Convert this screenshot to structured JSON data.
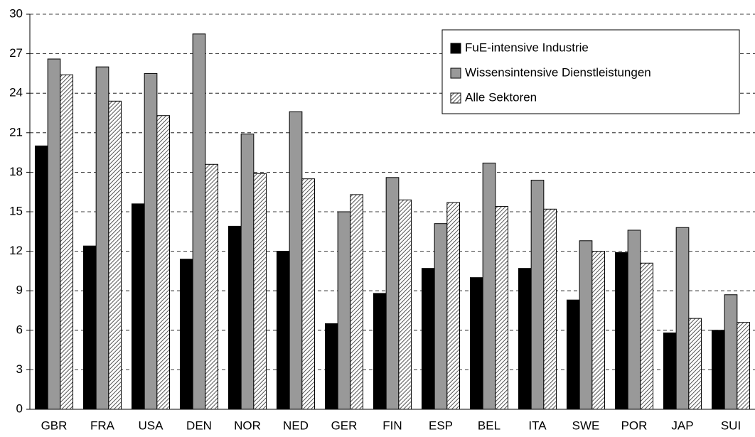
{
  "chart_data": {
    "type": "bar",
    "categories": [
      "GBR",
      "FRA",
      "USA",
      "DEN",
      "NOR",
      "NED",
      "GER",
      "FIN",
      "ESP",
      "BEL",
      "ITA",
      "SWE",
      "POR",
      "JAP",
      "SUI"
    ],
    "series": [
      {
        "name": "FuE-intensive Industrie",
        "color": "#000000",
        "values": [
          20.0,
          12.4,
          15.6,
          11.4,
          13.9,
          12.0,
          6.5,
          8.8,
          10.7,
          10.0,
          10.7,
          8.3,
          11.9,
          5.8,
          6.0
        ]
      },
      {
        "name": "Wissensintensive Dienstleistungen",
        "color": "#999999",
        "values": [
          26.6,
          26.0,
          25.5,
          28.5,
          20.9,
          22.6,
          15.0,
          17.6,
          14.1,
          18.7,
          17.4,
          12.8,
          13.6,
          13.8,
          8.7
        ]
      },
      {
        "name": "Alle Sektoren",
        "color": "#555555",
        "pattern": "hatch",
        "values": [
          25.4,
          23.4,
          22.3,
          18.6,
          17.9,
          17.5,
          16.3,
          15.9,
          15.7,
          15.4,
          15.2,
          12.0,
          11.1,
          6.9,
          6.6
        ]
      }
    ],
    "ylim": [
      0,
      30
    ],
    "yticks": [
      0,
      3,
      6,
      9,
      12,
      15,
      18,
      21,
      24,
      27,
      30
    ],
    "grid": true,
    "legend": "upper right"
  }
}
